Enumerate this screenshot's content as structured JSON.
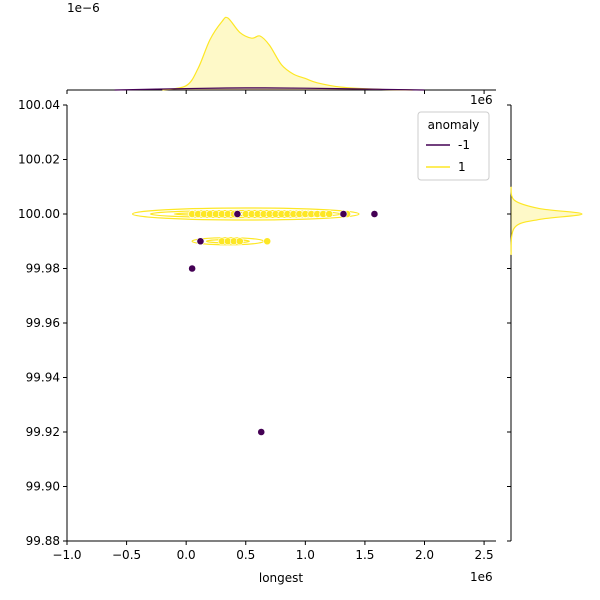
{
  "chart_data": {
    "type": "scatter",
    "xlabel": "longest",
    "ylabel": "",
    "x_offset_label": "1e6",
    "y_offset_label": "1e6",
    "top_offset_label": "1e−6",
    "xlim": [
      -1.0,
      2.6
    ],
    "ylim": [
      99.88,
      100.04
    ],
    "x_ticks": [
      -1.0,
      -0.5,
      0.0,
      0.5,
      1.0,
      1.5,
      2.0,
      2.5
    ],
    "x_tick_labels": [
      "−1.0",
      "−0.5",
      "0.0",
      "0.5",
      "1.0",
      "1.5",
      "2.0",
      "2.5"
    ],
    "y_ticks": [
      99.88,
      99.9,
      99.92,
      99.94,
      99.96,
      99.98,
      100.0,
      100.02,
      100.04
    ],
    "y_tick_labels": [
      "99.88",
      "99.90",
      "99.92",
      "99.94",
      "99.96",
      "99.98",
      "100.00",
      "100.02",
      "100.04"
    ],
    "legend": {
      "title": "anomaly",
      "placement": "top-right",
      "entries": [
        {
          "label": "-1",
          "color": "#440154"
        },
        {
          "label": "1",
          "color": "#fde725"
        }
      ]
    },
    "series": [
      {
        "name": "1",
        "color": "#fde725",
        "points": [
          [
            0.05,
            100.0
          ],
          [
            0.1,
            100.0
          ],
          [
            0.15,
            100.0
          ],
          [
            0.2,
            100.0
          ],
          [
            0.25,
            100.0
          ],
          [
            0.3,
            100.0
          ],
          [
            0.35,
            100.0
          ],
          [
            0.4,
            100.0
          ],
          [
            0.5,
            100.0
          ],
          [
            0.55,
            100.0
          ],
          [
            0.6,
            100.0
          ],
          [
            0.65,
            100.0
          ],
          [
            0.7,
            100.0
          ],
          [
            0.75,
            100.0
          ],
          [
            0.8,
            100.0
          ],
          [
            0.85,
            100.0
          ],
          [
            0.9,
            100.0
          ],
          [
            0.95,
            100.0
          ],
          [
            1.0,
            100.0
          ],
          [
            1.05,
            100.0
          ],
          [
            1.1,
            100.0
          ],
          [
            1.15,
            100.0
          ],
          [
            1.2,
            100.0
          ],
          [
            1.35,
            100.0
          ],
          [
            0.3,
            99.99
          ],
          [
            0.35,
            99.99
          ],
          [
            0.4,
            99.99
          ],
          [
            0.45,
            99.99
          ],
          [
            0.68,
            99.99
          ]
        ]
      },
      {
        "name": "-1",
        "color": "#440154",
        "points": [
          [
            0.43,
            100.0
          ],
          [
            1.32,
            100.0
          ],
          [
            1.58,
            100.0
          ],
          [
            0.12,
            99.99
          ],
          [
            0.05,
            99.98
          ],
          [
            0.63,
            99.92
          ]
        ]
      }
    ],
    "kde_x": {
      "series_1": [
        [
          -0.2,
          0.0
        ],
        [
          0.0,
          0.06
        ],
        [
          0.1,
          0.3
        ],
        [
          0.2,
          0.7
        ],
        [
          0.3,
          0.95
        ],
        [
          0.35,
          1.0
        ],
        [
          0.45,
          0.8
        ],
        [
          0.55,
          0.72
        ],
        [
          0.62,
          0.75
        ],
        [
          0.7,
          0.62
        ],
        [
          0.8,
          0.35
        ],
        [
          0.9,
          0.22
        ],
        [
          1.0,
          0.16
        ],
        [
          1.1,
          0.1
        ],
        [
          1.3,
          0.04
        ],
        [
          1.6,
          0.01
        ],
        [
          1.9,
          0.0
        ]
      ],
      "series_neg1": [
        [
          -0.6,
          0.0
        ],
        [
          0.0,
          0.02
        ],
        [
          0.5,
          0.03
        ],
        [
          1.0,
          0.025
        ],
        [
          1.6,
          0.01
        ],
        [
          2.0,
          0.0
        ]
      ]
    },
    "kde_y": {
      "series_1": [
        [
          99.985,
          0.0
        ],
        [
          99.995,
          0.05
        ],
        [
          99.998,
          0.4
        ],
        [
          100.0,
          1.0
        ],
        [
          100.002,
          0.4
        ],
        [
          100.005,
          0.05
        ],
        [
          100.01,
          0.0
        ]
      ]
    }
  }
}
